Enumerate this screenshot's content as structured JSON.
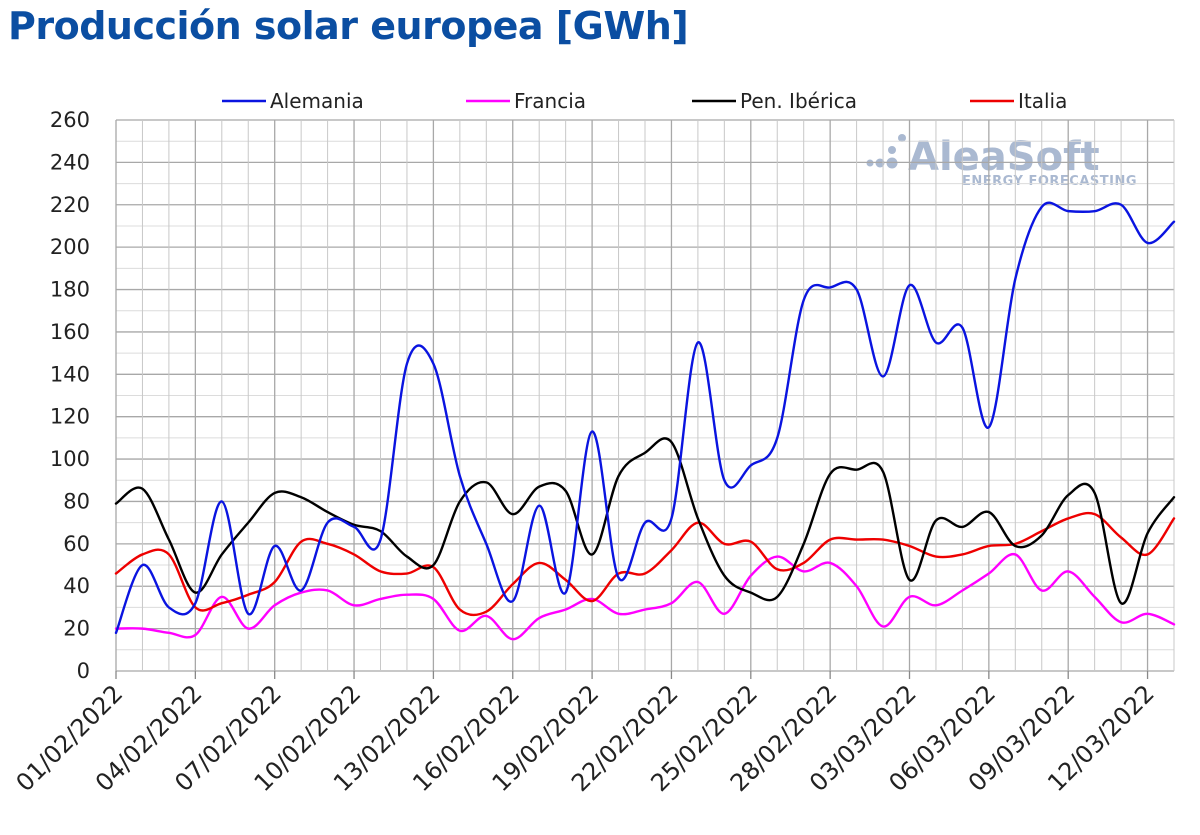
{
  "title": "Producción solar europea [GWh]",
  "watermark": {
    "brand": "AleaSoft",
    "tagline": "ENERGY FORECASTING"
  },
  "chart_data": {
    "type": "line",
    "title": "Producción solar europea [GWh]",
    "xlabel": "",
    "ylabel": "",
    "ylim": [
      0,
      260
    ],
    "yticks": [
      0,
      20,
      40,
      60,
      80,
      100,
      120,
      140,
      160,
      180,
      200,
      220,
      240,
      260
    ],
    "grid": true,
    "legend_position": "top",
    "x": [
      "01/02/2022",
      "02/02/2022",
      "03/02/2022",
      "04/02/2022",
      "05/02/2022",
      "06/02/2022",
      "07/02/2022",
      "08/02/2022",
      "09/02/2022",
      "10/02/2022",
      "11/02/2022",
      "12/02/2022",
      "13/02/2022",
      "14/02/2022",
      "15/02/2022",
      "16/02/2022",
      "17/02/2022",
      "18/02/2022",
      "19/02/2022",
      "20/02/2022",
      "21/02/2022",
      "22/02/2022",
      "23/02/2022",
      "24/02/2022",
      "25/02/2022",
      "26/02/2022",
      "27/02/2022",
      "28/02/2022",
      "01/03/2022",
      "02/03/2022",
      "03/03/2022",
      "04/03/2022",
      "05/03/2022",
      "06/03/2022",
      "07/03/2022",
      "08/03/2022",
      "09/03/2022",
      "10/03/2022",
      "11/03/2022",
      "12/03/2022",
      "13/03/2022"
    ],
    "x_tick_labels": [
      "01/02/2022",
      "04/02/2022",
      "07/02/2022",
      "10/02/2022",
      "13/02/2022",
      "16/02/2022",
      "19/02/2022",
      "22/02/2022",
      "25/02/2022",
      "28/02/2022",
      "03/03/2022",
      "06/03/2022",
      "09/03/2022",
      "12/03/2022"
    ],
    "series": [
      {
        "name": "Alemania",
        "color": "#0a14e0",
        "values": [
          18,
          50,
          30,
          32,
          80,
          27,
          59,
          38,
          70,
          68,
          62,
          145,
          145,
          92,
          60,
          33,
          78,
          37,
          113,
          44,
          70,
          72,
          155,
          90,
          97,
          110,
          175,
          181,
          180,
          139,
          182,
          155,
          162,
          115,
          185,
          219,
          217,
          217,
          220,
          202,
          212
        ]
      },
      {
        "name": "Francia",
        "color": "#ff00ff",
        "values": [
          20,
          20,
          18,
          17,
          35,
          20,
          31,
          37,
          38,
          31,
          34,
          36,
          34,
          19,
          26,
          15,
          25,
          29,
          34,
          27,
          29,
          32,
          42,
          27,
          45,
          54,
          47,
          51,
          40,
          21,
          35,
          31,
          38,
          46,
          55,
          38,
          47,
          35,
          23,
          27,
          22
        ]
      },
      {
        "name": "Pen. Ibérica",
        "color": "#000000",
        "values": [
          79,
          86,
          62,
          37,
          55,
          70,
          84,
          82,
          75,
          69,
          66,
          54,
          50,
          80,
          89,
          74,
          87,
          85,
          55,
          92,
          103,
          108,
          72,
          45,
          37,
          35,
          60,
          93,
          95,
          94,
          43,
          71,
          68,
          75,
          59,
          64,
          83,
          84,
          32,
          65,
          82
        ]
      },
      {
        "name": "Italia",
        "color": "#ee0000",
        "values": [
          46,
          55,
          55,
          30,
          32,
          36,
          42,
          61,
          60,
          55,
          47,
          46,
          49,
          29,
          28,
          41,
          51,
          43,
          33,
          46,
          46,
          57,
          70,
          60,
          61,
          48,
          51,
          62,
          62,
          62,
          59,
          54,
          55,
          59,
          60,
          66,
          72,
          74,
          63,
          55,
          72
        ]
      }
    ]
  }
}
